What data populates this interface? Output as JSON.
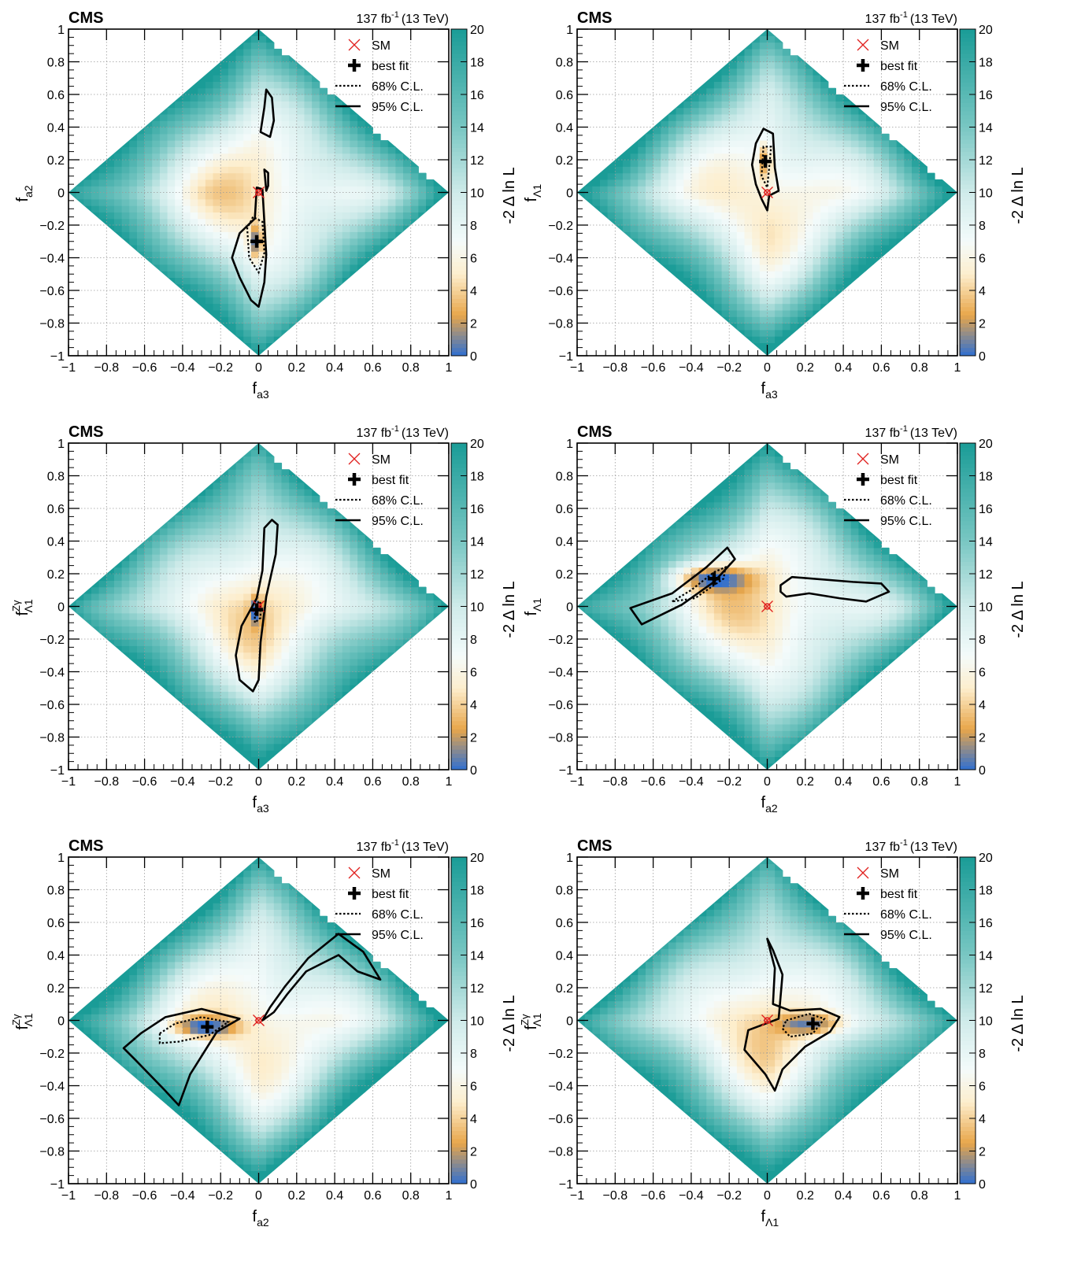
{
  "figure": {
    "colorbar_title": "-2 Δ ln L",
    "colorbar_ticks": [
      "0",
      "2",
      "4",
      "6",
      "8",
      "10",
      "12",
      "14",
      "16",
      "18",
      "20"
    ],
    "colors": {
      "min": "#2f6fd1",
      "low": "#e8a64a",
      "mid": "#fdeecd",
      "white": "#f4fbfb",
      "high": "#1a9c97"
    }
  },
  "chart_data": [
    {
      "type": "heatmap",
      "panel": "a",
      "experiment": "CMS",
      "lumi": "137 fb",
      "lumi_sup": "-1",
      "energy": "(13 TeV)",
      "xlabel": "f",
      "xlabel_sub": "a3",
      "xlabel_sup": "",
      "ylabel": "f",
      "ylabel_sub": "a2",
      "ylabel_sup": "",
      "xlim": [
        -1,
        1
      ],
      "ylim": [
        -1,
        1
      ],
      "zlim": [
        0,
        20
      ],
      "x_ticks": [
        "−1",
        "−0.8",
        "−0.6",
        "−0.4",
        "−0.2",
        "0",
        "0.2",
        "0.4",
        "0.6",
        "0.8",
        "1"
      ],
      "y_ticks": [
        "−1",
        "−0.8",
        "−0.6",
        "−0.4",
        "−0.2",
        "0",
        "0.2",
        "0.4",
        "0.6",
        "0.8",
        "1"
      ],
      "legend": [
        "SM",
        "best fit",
        "68% C.L.",
        "95% C.L."
      ],
      "sm": [
        0,
        0
      ],
      "best_fit": [
        -0.01,
        -0.3
      ],
      "cl95": [
        [
          [
            -0.01,
            0.03
          ],
          [
            -0.02,
            -0.16
          ],
          [
            -0.1,
            -0.25
          ],
          [
            -0.14,
            -0.4
          ],
          [
            -0.1,
            -0.52
          ],
          [
            -0.04,
            -0.66
          ],
          [
            0.0,
            -0.7
          ],
          [
            0.03,
            -0.55
          ],
          [
            0.04,
            -0.38
          ],
          [
            0.03,
            -0.18
          ],
          [
            0.02,
            0.02
          ]
        ],
        [
          [
            0.04,
            0.63
          ],
          [
            0.07,
            0.58
          ],
          [
            0.08,
            0.44
          ],
          [
            0.06,
            0.34
          ],
          [
            0.01,
            0.37
          ],
          [
            0.03,
            0.52
          ]
        ],
        [
          [
            0.05,
            0.12
          ],
          [
            0.05,
            0.04
          ],
          [
            0.04,
            0.01
          ],
          [
            0.03,
            0.14
          ]
        ]
      ],
      "cl68": [
        [
          [
            -0.03,
            -0.15
          ],
          [
            -0.06,
            -0.22
          ],
          [
            -0.05,
            -0.4
          ],
          [
            0.0,
            -0.49
          ],
          [
            0.03,
            -0.37
          ],
          [
            0.02,
            -0.18
          ]
        ]
      ],
      "min_region": [
        [
          -0.01,
          -0.3
        ],
        [
          0.02,
          0.06
        ]
      ]
    },
    {
      "type": "heatmap",
      "panel": "b",
      "experiment": "CMS",
      "lumi": "137 fb",
      "lumi_sup": "-1",
      "energy": "(13 TeV)",
      "xlabel": "f",
      "xlabel_sub": "a3",
      "xlabel_sup": "",
      "ylabel": "f",
      "ylabel_sub": "Λ1",
      "ylabel_sup": "",
      "xlim": [
        -1,
        1
      ],
      "ylim": [
        -1,
        1
      ],
      "zlim": [
        0,
        20
      ],
      "x_ticks": [
        "−1",
        "−0.8",
        "−0.6",
        "−0.4",
        "−0.2",
        "0",
        "0.2",
        "0.4",
        "0.6",
        "0.8",
        "1"
      ],
      "y_ticks": [
        "−1",
        "−0.8",
        "−0.6",
        "−0.4",
        "−0.2",
        "0",
        "0.2",
        "0.4",
        "0.6",
        "0.8",
        "1"
      ],
      "legend": [
        "SM",
        "best fit",
        "68% C.L.",
        "95% C.L."
      ],
      "sm": [
        0,
        0
      ],
      "best_fit": [
        -0.01,
        0.19
      ],
      "cl95": [
        [
          [
            -0.02,
            0.39
          ],
          [
            -0.06,
            0.3
          ],
          [
            -0.08,
            0.17
          ],
          [
            -0.06,
            0.05
          ],
          [
            -0.03,
            -0.04
          ],
          [
            0.0,
            -0.11
          ],
          [
            0.01,
            -0.02
          ],
          [
            0.06,
            0.01
          ],
          [
            0.04,
            0.15
          ],
          [
            0.03,
            0.36
          ]
        ]
      ],
      "cl68": [
        [
          [
            -0.02,
            0.28
          ],
          [
            -0.03,
            0.1
          ],
          [
            0.0,
            0.03
          ],
          [
            0.01,
            0.15
          ],
          [
            0.02,
            0.28
          ]
        ]
      ],
      "min_region": [
        [
          -0.01,
          0.19
        ],
        [
          0.02,
          0.06
        ]
      ]
    },
    {
      "type": "heatmap",
      "panel": "c",
      "experiment": "CMS",
      "lumi": "137 fb",
      "lumi_sup": "-1",
      "energy": "(13 TeV)",
      "xlabel": "f",
      "xlabel_sub": "a3",
      "xlabel_sup": "",
      "ylabel": "f",
      "ylabel_sub": "Λ1",
      "ylabel_sup": "Zγ",
      "xlim": [
        -1,
        1
      ],
      "ylim": [
        -1,
        1
      ],
      "zlim": [
        0,
        20
      ],
      "x_ticks": [
        "−1",
        "−0.8",
        "−0.6",
        "−0.4",
        "−0.2",
        "0",
        "0.2",
        "0.4",
        "0.6",
        "0.8",
        "1"
      ],
      "y_ticks": [
        "−1",
        "−0.8",
        "−0.6",
        "−0.4",
        "−0.2",
        "0",
        "0.2",
        "0.4",
        "0.6",
        "0.8",
        "1"
      ],
      "legend": [
        "SM",
        "best fit",
        "68% C.L.",
        "95% C.L."
      ],
      "sm": [
        0,
        0
      ],
      "best_fit": [
        -0.01,
        -0.02
      ],
      "cl95": [
        [
          [
            0.07,
            0.53
          ],
          [
            0.03,
            0.48
          ],
          [
            0.02,
            0.22
          ],
          [
            -0.01,
            0.05
          ],
          [
            -0.09,
            -0.12
          ],
          [
            -0.12,
            -0.3
          ],
          [
            -0.1,
            -0.45
          ],
          [
            -0.03,
            -0.52
          ],
          [
            0.0,
            -0.45
          ],
          [
            0.01,
            -0.22
          ],
          [
            0.04,
            0.06
          ],
          [
            0.09,
            0.32
          ],
          [
            0.1,
            0.5
          ]
        ]
      ],
      "cl68": [
        [
          [
            0.0,
            0.03
          ],
          [
            -0.02,
            -0.05
          ],
          [
            -0.02,
            -0.1
          ],
          [
            0.01,
            -0.07
          ],
          [
            0.01,
            0.02
          ]
        ]
      ],
      "min_region": [
        [
          -0.01,
          -0.02
        ],
        [
          0.02,
          0.05
        ]
      ]
    },
    {
      "type": "heatmap",
      "panel": "d",
      "experiment": "CMS",
      "lumi": "137 fb",
      "lumi_sup": "-1",
      "energy": "(13 TeV)",
      "xlabel": "f",
      "xlabel_sub": "a2",
      "xlabel_sup": "",
      "ylabel": "f",
      "ylabel_sub": "Λ1",
      "ylabel_sup": "",
      "xlim": [
        -1,
        1
      ],
      "ylim": [
        -1,
        1
      ],
      "zlim": [
        0,
        20
      ],
      "x_ticks": [
        "−1",
        "−0.8",
        "−0.6",
        "−0.4",
        "−0.2",
        "0",
        "0.2",
        "0.4",
        "0.6",
        "0.8",
        "1"
      ],
      "y_ticks": [
        "−1",
        "−0.8",
        "−0.6",
        "−0.4",
        "−0.2",
        "0",
        "0.2",
        "0.4",
        "0.6",
        "0.8",
        "1"
      ],
      "legend": [
        "SM",
        "best fit",
        "68% C.L.",
        "95% C.L."
      ],
      "sm": [
        0,
        0
      ],
      "best_fit": [
        -0.28,
        0.17
      ],
      "cl95": [
        [
          [
            -0.66,
            -0.11
          ],
          [
            -0.72,
            -0.01
          ],
          [
            -0.5,
            0.08
          ],
          [
            -0.32,
            0.24
          ],
          [
            -0.21,
            0.36
          ],
          [
            -0.17,
            0.29
          ],
          [
            -0.28,
            0.15
          ],
          [
            -0.45,
            0.01
          ]
        ],
        [
          [
            0.07,
            0.13
          ],
          [
            0.13,
            0.18
          ],
          [
            0.45,
            0.15
          ],
          [
            0.6,
            0.14
          ],
          [
            0.64,
            0.09
          ],
          [
            0.52,
            0.03
          ],
          [
            0.38,
            0.05
          ],
          [
            0.22,
            0.08
          ],
          [
            0.1,
            0.06
          ],
          [
            0.07,
            0.09
          ]
        ]
      ],
      "cl68": [
        [
          [
            -0.5,
            0.03
          ],
          [
            -0.4,
            0.1
          ],
          [
            -0.28,
            0.21
          ],
          [
            -0.22,
            0.24
          ],
          [
            -0.23,
            0.17
          ],
          [
            -0.38,
            0.05
          ]
        ]
      ],
      "min_region": [
        [
          -0.28,
          0.17
        ],
        [
          0.12,
          0.05
        ]
      ]
    },
    {
      "type": "heatmap",
      "panel": "e",
      "experiment": "CMS",
      "lumi": "137 fb",
      "lumi_sup": "-1",
      "energy": "(13 TeV)",
      "xlabel": "f",
      "xlabel_sub": "a2",
      "xlabel_sup": "",
      "ylabel": "f",
      "ylabel_sub": "Λ1",
      "ylabel_sup": "Zγ",
      "xlim": [
        -1,
        1
      ],
      "ylim": [
        -1,
        1
      ],
      "zlim": [
        0,
        20
      ],
      "x_ticks": [
        "−1",
        "−0.8",
        "−0.6",
        "−0.4",
        "−0.2",
        "0",
        "0.2",
        "0.4",
        "0.6",
        "0.8",
        "1"
      ],
      "y_ticks": [
        "−1",
        "−0.8",
        "−0.6",
        "−0.4",
        "−0.2",
        "0",
        "0.2",
        "0.4",
        "0.6",
        "0.8",
        "1"
      ],
      "legend": [
        "SM",
        "best fit",
        "68% C.L.",
        "95% C.L."
      ],
      "sm": [
        0,
        0
      ],
      "best_fit": [
        -0.27,
        -0.04
      ],
      "cl95": [
        [
          [
            -0.62,
            -0.08
          ],
          [
            -0.49,
            0.02
          ],
          [
            -0.3,
            0.07
          ],
          [
            -0.1,
            0.01
          ],
          [
            -0.22,
            -0.07
          ],
          [
            -0.36,
            -0.33
          ],
          [
            -0.42,
            -0.52
          ],
          [
            -0.5,
            -0.42
          ],
          [
            -0.65,
            -0.24
          ],
          [
            -0.71,
            -0.17
          ]
        ],
        [
          [
            0.02,
            0.0
          ],
          [
            0.06,
            0.08
          ],
          [
            0.14,
            0.21
          ],
          [
            0.26,
            0.38
          ],
          [
            0.42,
            0.53
          ],
          [
            0.55,
            0.42
          ],
          [
            0.64,
            0.25
          ],
          [
            0.52,
            0.3
          ],
          [
            0.42,
            0.4
          ],
          [
            0.25,
            0.3
          ],
          [
            0.15,
            0.16
          ],
          [
            0.08,
            0.05
          ]
        ]
      ],
      "cl68": [
        [
          [
            -0.52,
            -0.08
          ],
          [
            -0.44,
            -0.02
          ],
          [
            -0.3,
            0.02
          ],
          [
            -0.16,
            -0.01
          ],
          [
            -0.26,
            -0.09
          ],
          [
            -0.42,
            -0.13
          ],
          [
            -0.52,
            -0.14
          ]
        ]
      ],
      "min_region": [
        [
          -0.27,
          -0.04
        ],
        [
          0.1,
          0.035
        ]
      ]
    },
    {
      "type": "heatmap",
      "panel": "f",
      "experiment": "CMS",
      "lumi": "137 fb",
      "lumi_sup": "-1",
      "energy": "(13 TeV)",
      "xlabel": "f",
      "xlabel_sub": "Λ1",
      "xlabel_sup": "",
      "ylabel": "f",
      "ylabel_sub": "Λ1",
      "ylabel_sup": "Zγ",
      "xlim": [
        -1,
        1
      ],
      "ylim": [
        -1,
        1
      ],
      "zlim": [
        0,
        20
      ],
      "x_ticks": [
        "−1",
        "−0.8",
        "−0.6",
        "−0.4",
        "−0.2",
        "0",
        "0.2",
        "0.4",
        "0.6",
        "0.8",
        "1"
      ],
      "y_ticks": [
        "−1",
        "−0.8",
        "−0.6",
        "−0.4",
        "−0.2",
        "0",
        "0.2",
        "0.4",
        "0.6",
        "0.8",
        "1"
      ],
      "legend": [
        "SM",
        "best fit",
        "68% C.L.",
        "95% C.L."
      ],
      "sm": [
        0,
        0
      ],
      "best_fit": [
        0.24,
        -0.02
      ],
      "cl95": [
        [
          [
            0.0,
            0.5
          ],
          [
            0.04,
            0.32
          ],
          [
            0.03,
            0.1
          ],
          [
            0.12,
            0.06
          ],
          [
            0.28,
            0.07
          ],
          [
            0.38,
            0.02
          ],
          [
            0.33,
            -0.07
          ],
          [
            0.2,
            -0.16
          ],
          [
            0.08,
            -0.3
          ],
          [
            0.04,
            -0.43
          ],
          [
            -0.01,
            -0.33
          ],
          [
            -0.12,
            -0.18
          ],
          [
            -0.1,
            -0.06
          ],
          [
            0.06,
            0.01
          ],
          [
            0.08,
            0.28
          ],
          [
            0.03,
            0.43
          ]
        ]
      ],
      "cl68": [
        [
          [
            0.1,
            0.0
          ],
          [
            0.22,
            0.04
          ],
          [
            0.3,
            0.01
          ],
          [
            0.24,
            -0.08
          ],
          [
            0.12,
            -0.1
          ],
          [
            0.08,
            -0.05
          ]
        ]
      ],
      "min_region": [
        [
          0.22,
          -0.02
        ],
        [
          0.1,
          0.04
        ]
      ]
    }
  ]
}
